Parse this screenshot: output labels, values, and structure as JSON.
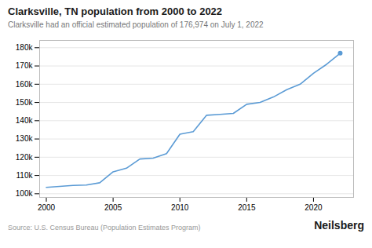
{
  "chart_data": {
    "type": "line",
    "title": "Clarksville, TN population from 2000 to 2022",
    "subtitle": "Clarksville had an official estimated population of 176,974 on July 1, 2022",
    "source": "Source: U.S. Census Bureau (Population Estimates Program)",
    "branding": "Neilsberg",
    "x": [
      2000,
      2001,
      2002,
      2003,
      2004,
      2005,
      2006,
      2007,
      2008,
      2009,
      2010,
      2011,
      2012,
      2013,
      2014,
      2015,
      2016,
      2017,
      2018,
      2019,
      2020,
      2021,
      2022
    ],
    "values": [
      103455,
      104007,
      104545,
      104765,
      106000,
      112000,
      114000,
      119000,
      119500,
      122000,
      132609,
      134000,
      143000,
      143500,
      144000,
      149000,
      150000,
      153000,
      157000,
      160000,
      166000,
      171000,
      176974
    ],
    "color": "#5b9bd5",
    "xlim": [
      1999.5,
      2023.0
    ],
    "xticks": [
      2000,
      2005,
      2010,
      2015,
      2020
    ],
    "ylim": [
      98000,
      184000
    ],
    "yticks": [
      {
        "value": 100000,
        "label": "100k"
      },
      {
        "value": 110000,
        "label": "110k"
      },
      {
        "value": 120000,
        "label": "120k"
      },
      {
        "value": 130000,
        "label": "130k"
      },
      {
        "value": 140000,
        "label": "140k"
      },
      {
        "value": 150000,
        "label": "150k"
      },
      {
        "value": 160000,
        "label": "160k"
      },
      {
        "value": 170000,
        "label": "170k"
      },
      {
        "value": 180000,
        "label": "180k"
      }
    ],
    "grid": true
  }
}
